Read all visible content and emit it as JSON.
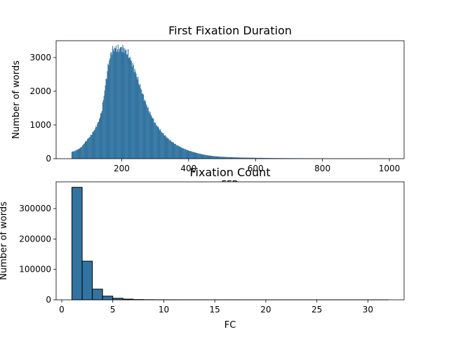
{
  "chart_data": [
    {
      "type": "bar",
      "subtype": "histogram",
      "title": "First Fixation Duration",
      "xlabel": "FFD",
      "ylabel": "Number of words",
      "xlim": [
        4,
        1044
      ],
      "ylim": [
        0,
        3500
      ],
      "xticks": [
        200,
        400,
        600,
        800,
        1000
      ],
      "yticks": [
        0,
        1000,
        2000,
        3000
      ],
      "bar_color": "#3274a1",
      "range": [
        50,
        1000
      ],
      "bin_width": 2,
      "profile_x": [
        50,
        60,
        70,
        80,
        90,
        100,
        110,
        120,
        130,
        140,
        150,
        160,
        170,
        180,
        190,
        200,
        210,
        220,
        230,
        240,
        250,
        260,
        270,
        280,
        290,
        300,
        320,
        340,
        360,
        380,
        400,
        420,
        440,
        460,
        480,
        500,
        550,
        600,
        650,
        700,
        750,
        800,
        850,
        900,
        950,
        1000
      ],
      "profile_y": [
        200,
        230,
        280,
        350,
        480,
        600,
        720,
        880,
        1080,
        1400,
        2100,
        2800,
        3200,
        3280,
        3250,
        3300,
        3220,
        3100,
        2850,
        2600,
        2300,
        2000,
        1700,
        1450,
        1250,
        1050,
        780,
        580,
        430,
        320,
        240,
        180,
        130,
        95,
        70,
        55,
        35,
        25,
        18,
        14,
        12,
        10,
        9,
        8,
        7,
        5
      ]
    },
    {
      "type": "bar",
      "subtype": "histogram",
      "title": "Fixation Count",
      "xlabel": "FC",
      "ylabel": "Number of words",
      "xlim": [
        -0.55,
        33.55
      ],
      "ylim": [
        0,
        388000
      ],
      "xticks": [
        0,
        5,
        10,
        15,
        20,
        25,
        30
      ],
      "yticks": [
        0,
        100000,
        200000,
        300000
      ],
      "bar_color": "#3274a1",
      "bin_edges": [
        1,
        2,
        3,
        4,
        5,
        6,
        7,
        8,
        9,
        10,
        11,
        12,
        13,
        14,
        15,
        16,
        17,
        18,
        19,
        20,
        21,
        22,
        23,
        24,
        25,
        26,
        27,
        28,
        29,
        30,
        31,
        32
      ],
      "counts": [
        370000,
        127000,
        35000,
        12000,
        5000,
        2200,
        900,
        400,
        200,
        100,
        50,
        30,
        20,
        10,
        5,
        5,
        3,
        2,
        2,
        1,
        1,
        1,
        1,
        1,
        1,
        1,
        1,
        1,
        1,
        1,
        1
      ]
    }
  ]
}
